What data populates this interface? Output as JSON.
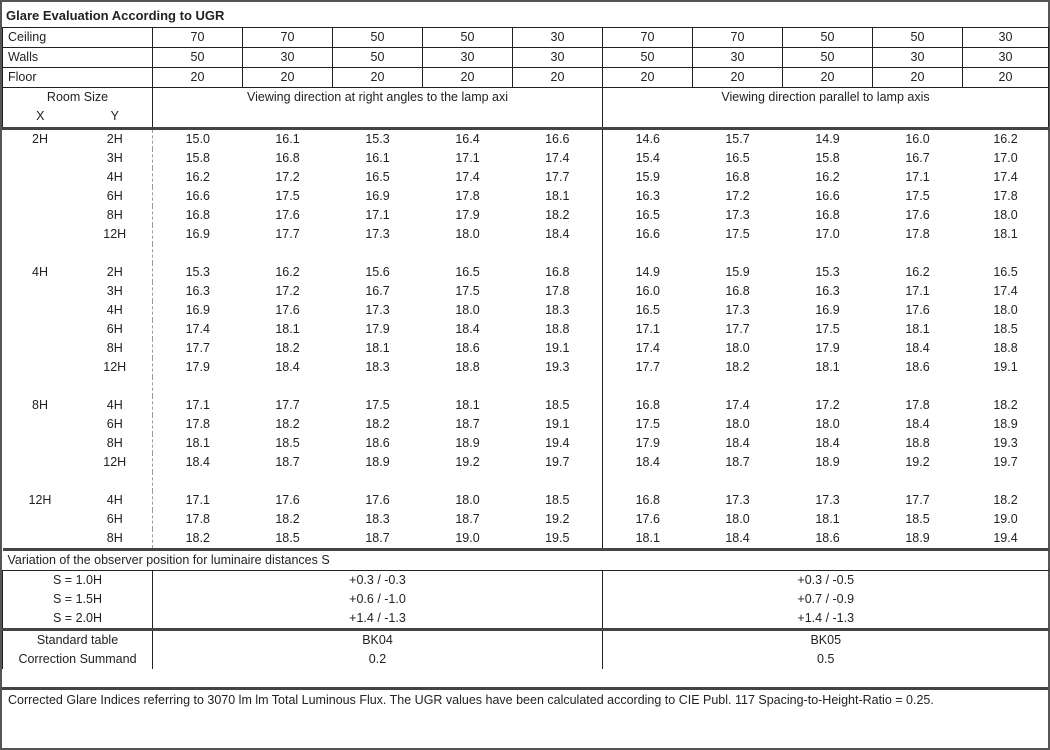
{
  "title": "Glare Evaluation According to UGR",
  "reflectances": [
    {
      "label": "Ceiling",
      "values": [
        "70",
        "70",
        "50",
        "50",
        "30",
        "70",
        "70",
        "50",
        "50",
        "30"
      ]
    },
    {
      "label": "Walls",
      "values": [
        "50",
        "30",
        "50",
        "30",
        "30",
        "50",
        "30",
        "50",
        "30",
        "30"
      ]
    },
    {
      "label": "Floor",
      "values": [
        "20",
        "20",
        "20",
        "20",
        "20",
        "20",
        "20",
        "20",
        "20",
        "20"
      ]
    }
  ],
  "room_size_label": "Room Size",
  "x_label": "X",
  "y_label": "Y",
  "dir_right_angles": "Viewing direction at right angles to the lamp axi",
  "dir_parallel": "Viewing direction parallel to lamp axis",
  "groups": [
    {
      "x": "2H",
      "rows": [
        {
          "y": "2H",
          "v": [
            "15.0",
            "16.1",
            "15.3",
            "16.4",
            "16.6",
            "14.6",
            "15.7",
            "14.9",
            "16.0",
            "16.2"
          ]
        },
        {
          "y": "3H",
          "v": [
            "15.8",
            "16.8",
            "16.1",
            "17.1",
            "17.4",
            "15.4",
            "16.5",
            "15.8",
            "16.7",
            "17.0"
          ]
        },
        {
          "y": "4H",
          "v": [
            "16.2",
            "17.2",
            "16.5",
            "17.4",
            "17.7",
            "15.9",
            "16.8",
            "16.2",
            "17.1",
            "17.4"
          ]
        },
        {
          "y": "6H",
          "v": [
            "16.6",
            "17.5",
            "16.9",
            "17.8",
            "18.1",
            "16.3",
            "17.2",
            "16.6",
            "17.5",
            "17.8"
          ]
        },
        {
          "y": "8H",
          "v": [
            "16.8",
            "17.6",
            "17.1",
            "17.9",
            "18.2",
            "16.5",
            "17.3",
            "16.8",
            "17.6",
            "18.0"
          ]
        },
        {
          "y": "12H",
          "v": [
            "16.9",
            "17.7",
            "17.3",
            "18.0",
            "18.4",
            "16.6",
            "17.5",
            "17.0",
            "17.8",
            "18.1"
          ]
        }
      ]
    },
    {
      "x": "4H",
      "rows": [
        {
          "y": "2H",
          "v": [
            "15.3",
            "16.2",
            "15.6",
            "16.5",
            "16.8",
            "14.9",
            "15.9",
            "15.3",
            "16.2",
            "16.5"
          ]
        },
        {
          "y": "3H",
          "v": [
            "16.3",
            "17.2",
            "16.7",
            "17.5",
            "17.8",
            "16.0",
            "16.8",
            "16.3",
            "17.1",
            "17.4"
          ]
        },
        {
          "y": "4H",
          "v": [
            "16.9",
            "17.6",
            "17.3",
            "18.0",
            "18.3",
            "16.5",
            "17.3",
            "16.9",
            "17.6",
            "18.0"
          ]
        },
        {
          "y": "6H",
          "v": [
            "17.4",
            "18.1",
            "17.9",
            "18.4",
            "18.8",
            "17.1",
            "17.7",
            "17.5",
            "18.1",
            "18.5"
          ]
        },
        {
          "y": "8H",
          "v": [
            "17.7",
            "18.2",
            "18.1",
            "18.6",
            "19.1",
            "17.4",
            "18.0",
            "17.9",
            "18.4",
            "18.8"
          ]
        },
        {
          "y": "12H",
          "v": [
            "17.9",
            "18.4",
            "18.3",
            "18.8",
            "19.3",
            "17.7",
            "18.2",
            "18.1",
            "18.6",
            "19.1"
          ]
        }
      ]
    },
    {
      "x": "8H",
      "rows": [
        {
          "y": "4H",
          "v": [
            "17.1",
            "17.7",
            "17.5",
            "18.1",
            "18.5",
            "16.8",
            "17.4",
            "17.2",
            "17.8",
            "18.2"
          ]
        },
        {
          "y": "6H",
          "v": [
            "17.8",
            "18.2",
            "18.2",
            "18.7",
            "19.1",
            "17.5",
            "18.0",
            "18.0",
            "18.4",
            "18.9"
          ]
        },
        {
          "y": "8H",
          "v": [
            "18.1",
            "18.5",
            "18.6",
            "18.9",
            "19.4",
            "17.9",
            "18.4",
            "18.4",
            "18.8",
            "19.3"
          ]
        },
        {
          "y": "12H",
          "v": [
            "18.4",
            "18.7",
            "18.9",
            "19.2",
            "19.7",
            "18.4",
            "18.7",
            "18.9",
            "19.2",
            "19.7"
          ]
        }
      ]
    },
    {
      "x": "12H",
      "rows": [
        {
          "y": "4H",
          "v": [
            "17.1",
            "17.6",
            "17.6",
            "18.0",
            "18.5",
            "16.8",
            "17.3",
            "17.3",
            "17.7",
            "18.2"
          ]
        },
        {
          "y": "6H",
          "v": [
            "17.8",
            "18.2",
            "18.3",
            "18.7",
            "19.2",
            "17.6",
            "18.0",
            "18.1",
            "18.5",
            "19.0"
          ]
        },
        {
          "y": "8H",
          "v": [
            "18.2",
            "18.5",
            "18.7",
            "19.0",
            "19.5",
            "18.1",
            "18.4",
            "18.6",
            "18.9",
            "19.4"
          ]
        }
      ]
    }
  ],
  "variation_label": "Variation of the observer position for luminaire distances S",
  "variation": [
    {
      "s": "S = 1.0H",
      "right": "+0.3 / -0.3",
      "parallel": "+0.3 / -0.5"
    },
    {
      "s": "S = 1.5H",
      "right": "+0.6 / -1.0",
      "parallel": "+0.7 / -0.9"
    },
    {
      "s": "S = 2.0H",
      "right": "+1.4 / -1.3",
      "parallel": "+1.4 / -1.3"
    }
  ],
  "standard_table": {
    "label": "Standard table",
    "right": "BK04",
    "parallel": "BK05"
  },
  "correction": {
    "label": "Correction Summand",
    "right": "0.2",
    "parallel": "0.5"
  },
  "footer": "Corrected Glare Indices referring to 3070 lm lm Total Luminous Flux. The UGR values have been calculated according to CIE Publ. 117    Spacing-to-Height-Ratio = 0.25."
}
